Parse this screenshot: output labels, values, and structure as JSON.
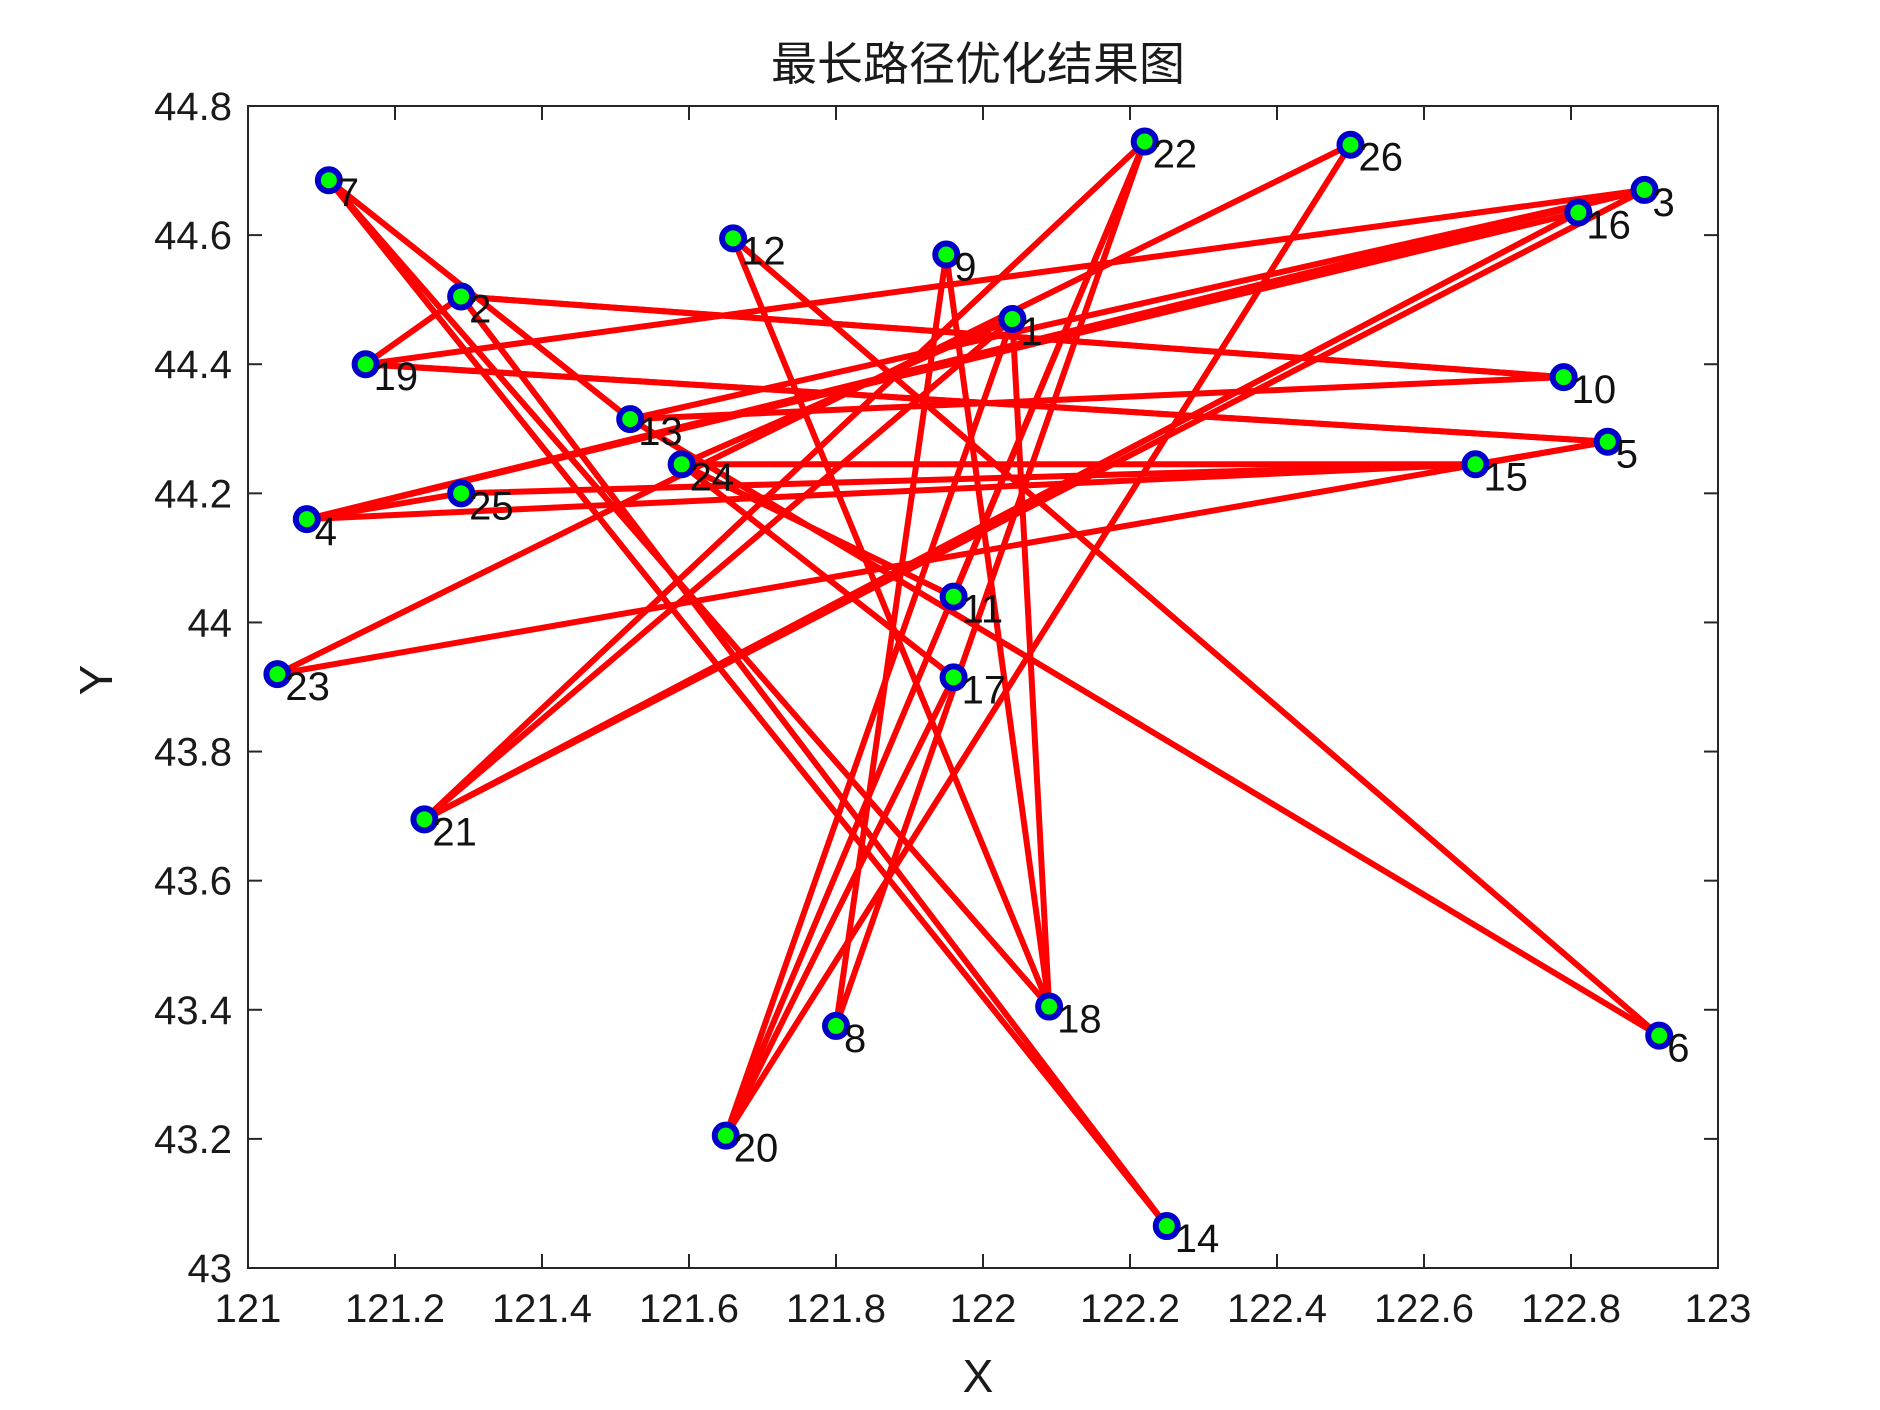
{
  "colors": {
    "route": "#ff0000",
    "marker_edge": "#0000cc",
    "marker_fill": "#00ff00",
    "axes": "#262626"
  },
  "chart_data": {
    "type": "line",
    "title": "最长路径优化结果图",
    "xlabel": "X",
    "ylabel": "Y",
    "xlim": [
      121,
      123
    ],
    "ylim": [
      43,
      44.8
    ],
    "xticks": [
      {
        "value": 121,
        "label": "121"
      },
      {
        "value": 121.2,
        "label": "121.2"
      },
      {
        "value": 121.4,
        "label": "121.4"
      },
      {
        "value": 121.6,
        "label": "121.6"
      },
      {
        "value": 121.8,
        "label": "121.8"
      },
      {
        "value": 122,
        "label": "122"
      },
      {
        "value": 122.2,
        "label": "122.2"
      },
      {
        "value": 122.4,
        "label": "122.4"
      },
      {
        "value": 122.6,
        "label": "122.6"
      },
      {
        "value": 122.8,
        "label": "122.8"
      },
      {
        "value": 123,
        "label": "123"
      }
    ],
    "yticks": [
      {
        "value": 43,
        "label": "43"
      },
      {
        "value": 43.2,
        "label": "43.2"
      },
      {
        "value": 43.4,
        "label": "43.4"
      },
      {
        "value": 43.6,
        "label": "43.6"
      },
      {
        "value": 43.8,
        "label": "43.8"
      },
      {
        "value": 44,
        "label": "44"
      },
      {
        "value": 44.2,
        "label": "44.2"
      },
      {
        "value": 44.4,
        "label": "44.4"
      },
      {
        "value": 44.6,
        "label": "44.6"
      },
      {
        "value": 44.8,
        "label": "44.8"
      }
    ],
    "grid": false,
    "points": [
      {
        "id": "1",
        "x": 122.04,
        "y": 44.47
      },
      {
        "id": "2",
        "x": 121.29,
        "y": 44.505
      },
      {
        "id": "3",
        "x": 122.9,
        "y": 44.67
      },
      {
        "id": "4",
        "x": 121.08,
        "y": 44.16
      },
      {
        "id": "5",
        "x": 122.85,
        "y": 44.28
      },
      {
        "id": "6",
        "x": 122.92,
        "y": 43.36
      },
      {
        "id": "7",
        "x": 121.11,
        "y": 44.685
      },
      {
        "id": "8",
        "x": 121.8,
        "y": 43.375
      },
      {
        "id": "9",
        "x": 121.95,
        "y": 44.57
      },
      {
        "id": "10",
        "x": 122.79,
        "y": 44.38
      },
      {
        "id": "11",
        "x": 121.96,
        "y": 44.04
      },
      {
        "id": "12",
        "x": 121.66,
        "y": 44.595
      },
      {
        "id": "13",
        "x": 121.52,
        "y": 44.315
      },
      {
        "id": "14",
        "x": 122.25,
        "y": 43.065
      },
      {
        "id": "15",
        "x": 122.67,
        "y": 44.245
      },
      {
        "id": "16",
        "x": 122.81,
        "y": 44.635
      },
      {
        "id": "17",
        "x": 121.96,
        "y": 43.915
      },
      {
        "id": "18",
        "x": 122.09,
        "y": 43.405
      },
      {
        "id": "19",
        "x": 121.16,
        "y": 44.4
      },
      {
        "id": "20",
        "x": 121.65,
        "y": 43.205
      },
      {
        "id": "21",
        "x": 121.24,
        "y": 43.695
      },
      {
        "id": "22",
        "x": 122.22,
        "y": 44.745
      },
      {
        "id": "23",
        "x": 121.04,
        "y": 43.92
      },
      {
        "id": "24",
        "x": 121.59,
        "y": 44.245
      },
      {
        "id": "25",
        "x": 121.29,
        "y": 44.2
      }
    ],
    "route": [
      "7",
      "18",
      "12",
      "6",
      "13",
      "7",
      "14",
      "2",
      "10",
      "13",
      "3",
      "4",
      "25",
      "15",
      "24",
      "17",
      "20",
      "22",
      "8",
      "9",
      "18",
      "1",
      "21",
      "3",
      "19",
      "5",
      "23",
      "26",
      "20",
      "1",
      "24",
      "11",
      "22",
      "21",
      "16",
      "4",
      "15",
      "5",
      "19",
      "2",
      "10"
    ],
    "extra_points": [
      {
        "id": "26",
        "x": 122.5,
        "y": 44.74
      }
    ]
  }
}
